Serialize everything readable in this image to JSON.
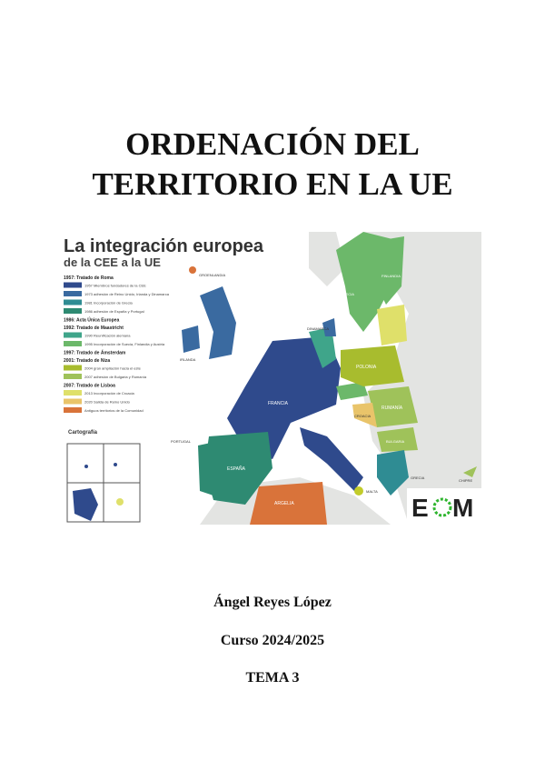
{
  "document": {
    "title_line1": "ORDENACIÓN DEL",
    "title_line2": "TERRITORIO EN LA UE",
    "author": "Ángel Reyes López",
    "course": "Curso 2024/2025",
    "topic": "TEMA 3"
  },
  "map_figure": {
    "title": "La integración europea",
    "subtitle": "de la CEE a la UE",
    "legend": [
      {
        "heading": "1957: Tratado de Roma"
      },
      {
        "color": "#2f4a8c",
        "label": "1957 Miembros fundadores de la CEE"
      },
      {
        "color": "#3a6aa0",
        "label": "1973 adhesión de Reino Unido, Irlanda y Dinamarca"
      },
      {
        "color": "#2f8c93",
        "label": "1981 Incorporación de Grecia"
      },
      {
        "color": "#2e8a72",
        "label": "1986 adhesión de España y Portugal"
      },
      {
        "heading": "1986: Acta Única Europea"
      },
      {
        "heading": "1992: Tratado de Maastricht"
      },
      {
        "color": "#3fa58a",
        "label": "1990 Reunificación alemana"
      },
      {
        "color": "#6cb86a",
        "label": "1995 Incorporación de Suecia, Finlandia y Austria"
      },
      {
        "heading": "1997: Tratado de Ámsterdam"
      },
      {
        "heading": "2001: Tratado de Niza"
      },
      {
        "color": "#a8bc2e",
        "label": "2004 gran ampliación hacia el este"
      },
      {
        "color": "#9fc25a",
        "label": "2007 adhesión de Bulgaria y Rumanía"
      },
      {
        "heading": "2007: Tratado de Lisboa"
      },
      {
        "color": "#dfe06a",
        "label": "2013 Incorporación de Croacia"
      },
      {
        "color": "#e9c46a",
        "label": "2020 Salida de Reino Unido"
      },
      {
        "color": "#d9733a",
        "label": "Antiguos territorios de la Comunidad"
      }
    ],
    "labels": {
      "francia": "FRANCIA",
      "espana": "ESPAÑA",
      "portugal": "PORTUGAL",
      "irlanda": "IRLANDA",
      "dinamarca": "DINAMARCA",
      "polonia": "POLONIA",
      "rumania": "RUMANÍA",
      "bulgaria": "BULGARIA",
      "grecia": "GRECIA",
      "croacia": "CROACIA",
      "malta": "MALTA",
      "chipre": "CHIPRE",
      "finlandia": "FINLANDIA",
      "suecia": "SUECIA",
      "argelia": "ARGELIA",
      "groenlandia": "GROENLANDIA",
      "cartography": "Cartografía"
    },
    "logo": "EOM"
  }
}
